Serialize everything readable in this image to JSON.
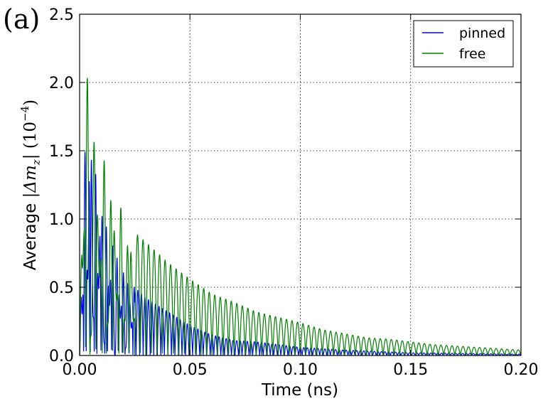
{
  "panel_label": "(a)",
  "chart_data": {
    "type": "line",
    "xlabel": "Time (ns)",
    "ylabel": {
      "prefix": "Average ",
      "math": "|Δm",
      "sub": "z",
      "mid": "| (10",
      "sup": "−4",
      "end": ")"
    },
    "xlim": [
      0.0,
      0.2
    ],
    "ylim": [
      0.0,
      2.5
    ],
    "xticks": [
      0.0,
      0.05,
      0.1,
      0.15,
      0.2
    ],
    "xtick_labels": [
      "0.00",
      "0.05",
      "0.10",
      "0.15",
      "0.20"
    ],
    "yticks": [
      0.0,
      0.5,
      1.0,
      1.5,
      2.0,
      2.5
    ],
    "ytick_labels": [
      "0.0",
      "0.5",
      "1.0",
      "1.5",
      "2.0",
      "2.5"
    ],
    "grid": true,
    "legend_position": "top-right",
    "series": [
      {
        "name": "pinned",
        "color": "#0000ff",
        "envelope_peaks": [
          [
            0.0,
            0.0
          ],
          [
            0.001,
            0.9
          ],
          [
            0.0015,
            1.62
          ],
          [
            0.002,
            1.35
          ],
          [
            0.003,
            1.68
          ],
          [
            0.004,
            1.7
          ],
          [
            0.0055,
            1.65
          ],
          [
            0.007,
            1.35
          ],
          [
            0.009,
            1.3
          ],
          [
            0.011,
            1.0
          ],
          [
            0.013,
            0.95
          ],
          [
            0.016,
            0.8
          ],
          [
            0.02,
            0.62
          ],
          [
            0.025,
            0.5
          ],
          [
            0.03,
            0.42
          ],
          [
            0.04,
            0.32
          ],
          [
            0.05,
            0.22
          ],
          [
            0.06,
            0.15
          ],
          [
            0.07,
            0.11
          ],
          [
            0.08,
            0.1
          ],
          [
            0.09,
            0.08
          ],
          [
            0.1,
            0.06
          ],
          [
            0.12,
            0.04
          ],
          [
            0.15,
            0.02
          ],
          [
            0.2,
            0.01
          ]
        ],
        "oscillation_period_ns": 0.0016
      },
      {
        "name": "free",
        "color": "#008000",
        "envelope_peaks": [
          [
            0.0,
            0.0
          ],
          [
            0.001,
            1.6
          ],
          [
            0.002,
            1.62
          ],
          [
            0.003,
            2.32
          ],
          [
            0.004,
            1.9
          ],
          [
            0.006,
            1.78
          ],
          [
            0.008,
            1.52
          ],
          [
            0.01,
            1.48
          ],
          [
            0.012,
            1.42
          ],
          [
            0.015,
            1.25
          ],
          [
            0.017,
            1.18
          ],
          [
            0.02,
            1.01
          ],
          [
            0.025,
            0.9
          ],
          [
            0.03,
            0.83
          ],
          [
            0.04,
            0.68
          ],
          [
            0.05,
            0.56
          ],
          [
            0.06,
            0.45
          ],
          [
            0.07,
            0.39
          ],
          [
            0.08,
            0.32
          ],
          [
            0.09,
            0.28
          ],
          [
            0.1,
            0.24
          ],
          [
            0.11,
            0.19
          ],
          [
            0.12,
            0.16
          ],
          [
            0.13,
            0.13
          ],
          [
            0.14,
            0.12
          ],
          [
            0.15,
            0.1
          ],
          [
            0.16,
            0.08
          ],
          [
            0.17,
            0.07
          ],
          [
            0.18,
            0.06
          ],
          [
            0.19,
            0.05
          ],
          [
            0.2,
            0.04
          ]
        ],
        "oscillation_period_ns": 0.0025
      }
    ]
  }
}
